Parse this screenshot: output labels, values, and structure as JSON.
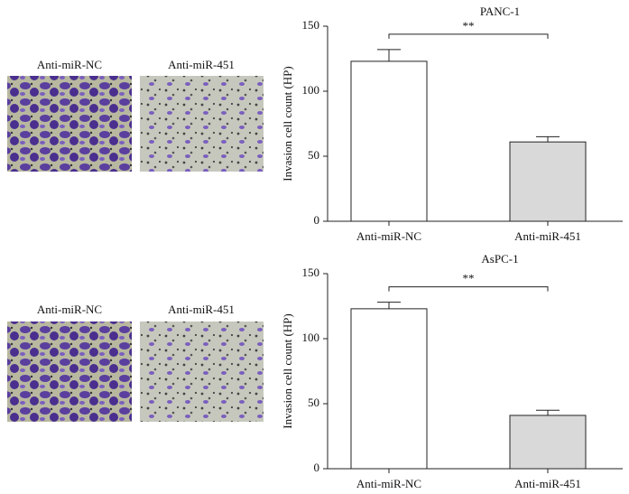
{
  "image_panels": [
    {
      "labels": [
        "Anti-miR-NC",
        "Anti-miR-451"
      ]
    },
    {
      "labels": [
        "Anti-miR-NC",
        "Anti-miR-451"
      ]
    }
  ],
  "chart_data": [
    {
      "type": "bar",
      "title": "PANC-1",
      "y_label": "Invasion cell count (HP)",
      "categories": [
        "Anti-miR-NC",
        "Anti-miR-451"
      ],
      "values": [
        123,
        61
      ],
      "errors": [
        9,
        4
      ],
      "colors": [
        "#ffffff",
        "#d9d9d9"
      ],
      "ylim": [
        0,
        150
      ],
      "yticks": [
        0,
        50,
        100,
        150
      ],
      "annotation": "**"
    },
    {
      "type": "bar",
      "title": "AsPC-1",
      "y_label": "Invasion cell count (HP)",
      "categories": [
        "Anti-miR-NC",
        "Anti-miR-451"
      ],
      "values": [
        123,
        41
      ],
      "errors": [
        5,
        4
      ],
      "colors": [
        "#ffffff",
        "#d9d9d9"
      ],
      "ylim": [
        0,
        150
      ],
      "yticks": [
        0,
        50,
        100,
        150
      ],
      "annotation": "**"
    }
  ]
}
